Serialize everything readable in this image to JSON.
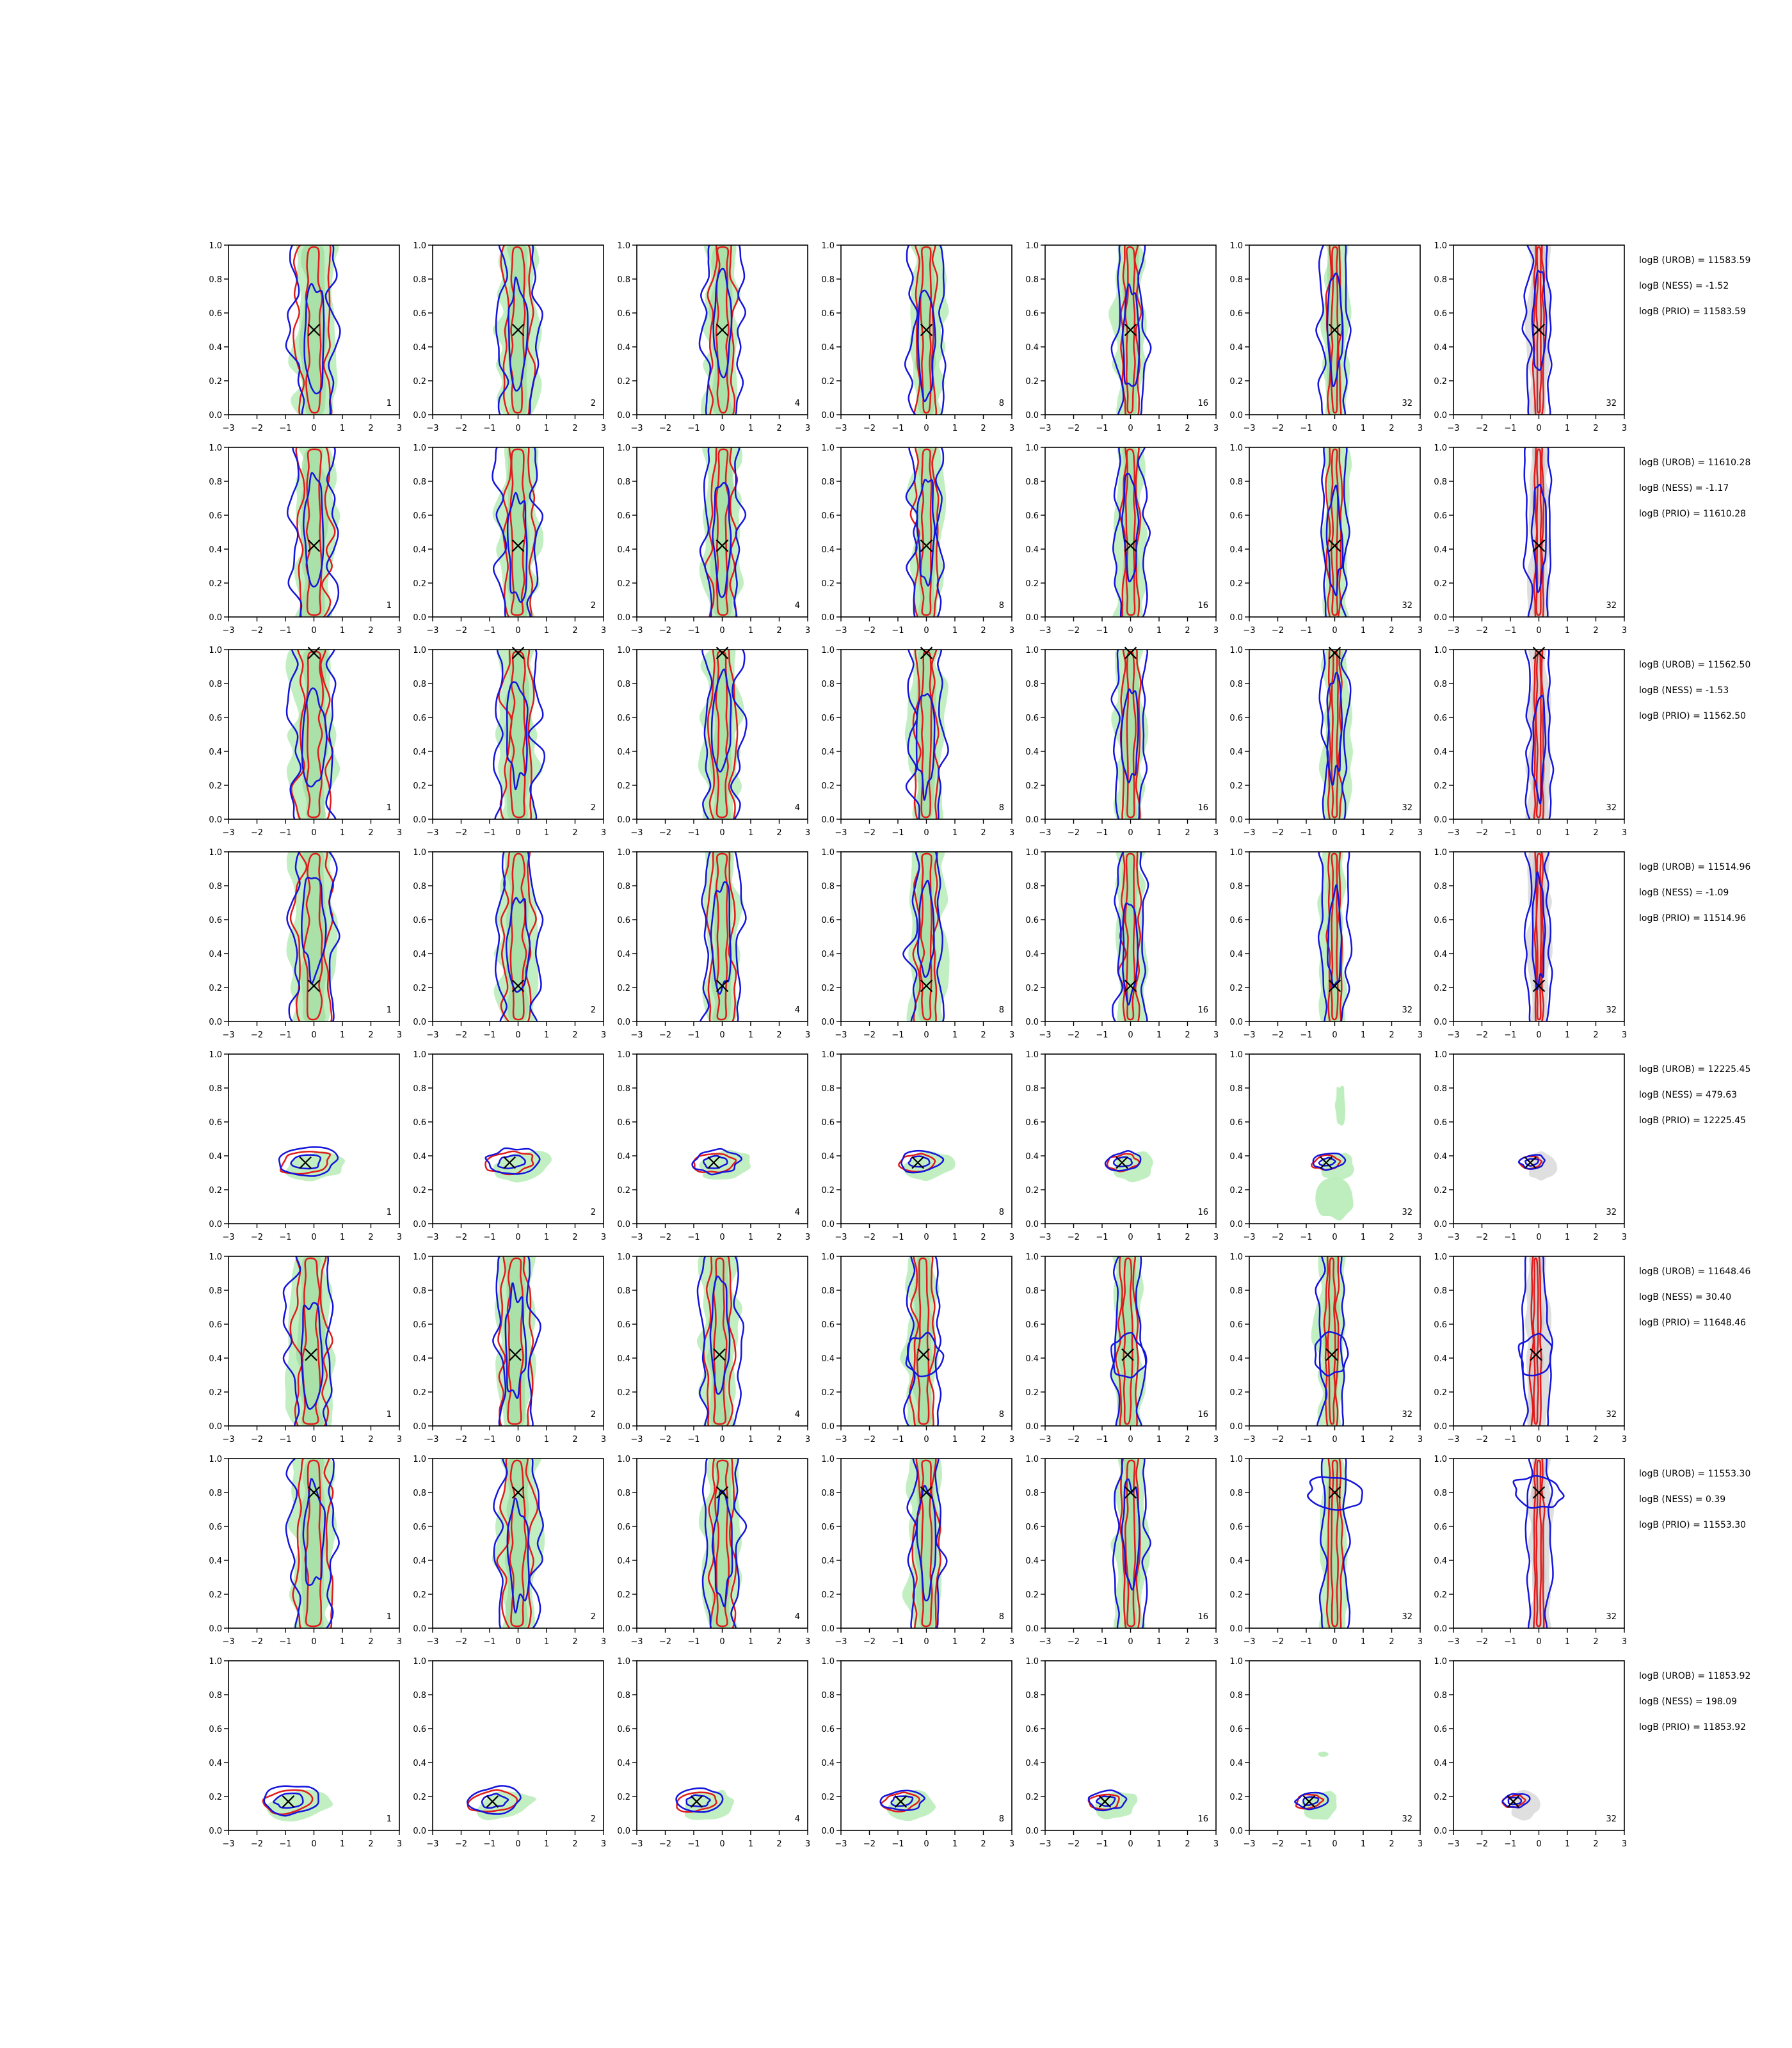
{
  "chart_data": {
    "type": "contour-grid",
    "xlim": [
      -3,
      3
    ],
    "ylim": [
      0.0,
      1.0
    ],
    "xticks": [
      "−3",
      "−2",
      "−1",
      "0",
      "1",
      "2",
      "3"
    ],
    "yticks": [
      "0.0",
      "0.2",
      "0.4",
      "0.6",
      "0.8",
      "1.0"
    ],
    "columns": [
      "1",
      "2",
      "4",
      "8",
      "16",
      "32",
      "32"
    ],
    "colors": {
      "red": "#e11b1b",
      "blue": "#1414dc",
      "green_fill": "#b7ecb7",
      "grey_fill": "#d9d9d9",
      "marker": "#000000",
      "axes": "#000000"
    },
    "rows": [
      {
        "truth": {
          "x": 0.0,
          "y": 0.5
        },
        "kind": "vertical",
        "spreadY": [
          0.0,
          1.0
        ],
        "annotations": [
          "logB (UROB) = 11583.59",
          "logB (NESS) = -1.52",
          "logB (PRIO) = 11583.59"
        ]
      },
      {
        "truth": {
          "x": 0.0,
          "y": 0.42
        },
        "kind": "vertical",
        "spreadY": [
          0.0,
          1.0
        ],
        "annotations": [
          "logB (UROB) = 11610.28",
          "logB (NESS) = -1.17",
          "logB (PRIO) = 11610.28"
        ]
      },
      {
        "truth": {
          "x": 0.0,
          "y": 0.98
        },
        "kind": "vertical",
        "spreadY": [
          0.0,
          1.0
        ],
        "annotations": [
          "logB (UROB) = 11562.50",
          "logB (NESS) = -1.53",
          "logB (PRIO) = 11562.50"
        ]
      },
      {
        "truth": {
          "x": 0.0,
          "y": 0.21
        },
        "kind": "vertical",
        "spreadY": [
          0.0,
          1.0
        ],
        "annotations": [
          "logB (UROB) = 11514.96",
          "logB (NESS) = -1.09",
          "logB (PRIO) = 11514.96"
        ]
      },
      {
        "truth": {
          "x": -0.3,
          "y": 0.36
        },
        "kind": "compact",
        "annotations": [
          "logB (UROB) = 12225.45",
          "logB (NESS) = 479.63",
          "logB (PRIO) = 12225.45"
        ]
      },
      {
        "truth": {
          "x": -0.1,
          "y": 0.42
        },
        "kind": "vertical",
        "spreadY": [
          0.0,
          1.0
        ],
        "annotations": [
          "logB (UROB) = 11648.46",
          "logB (NESS) = 30.40",
          "logB (PRIO) = 11648.46"
        ]
      },
      {
        "truth": {
          "x": 0.0,
          "y": 0.8
        },
        "kind": "vertical",
        "spreadY": [
          0.0,
          1.0
        ],
        "annotations": [
          "logB (UROB) = 11553.30",
          "logB (NESS) = 0.39",
          "logB (PRIO) = 11553.30"
        ]
      },
      {
        "truth": {
          "x": -0.9,
          "y": 0.17
        },
        "kind": "compact",
        "annotations": [
          "logB (UROB) = 11853.92",
          "logB (NESS) = 198.09",
          "logB (PRIO) = 11853.92"
        ]
      }
    ]
  }
}
